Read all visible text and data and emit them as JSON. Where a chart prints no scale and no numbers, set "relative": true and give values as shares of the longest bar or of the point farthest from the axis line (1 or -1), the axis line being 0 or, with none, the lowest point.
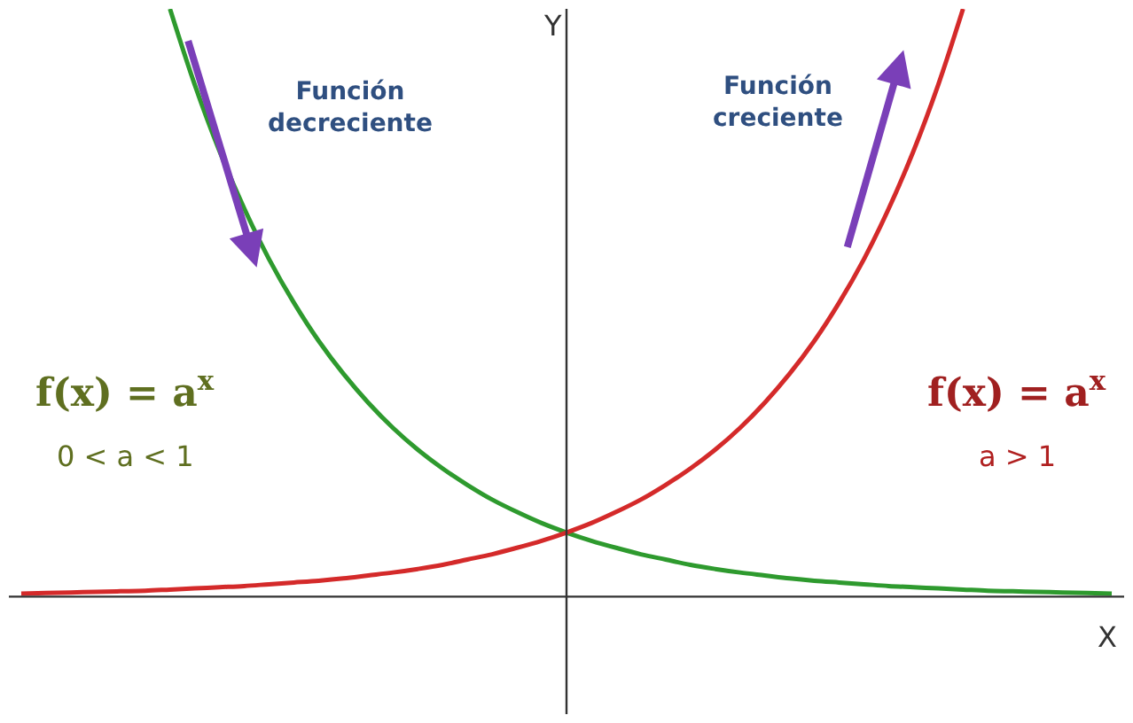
{
  "chart_data": {
    "type": "line",
    "relative": true,
    "xlabel": "X",
    "ylabel": "Y",
    "categories": [
      null,
      null,
      null,
      null,
      null,
      null,
      null,
      null,
      null,
      null,
      null,
      null,
      null,
      null,
      null,
      null,
      null,
      null,
      null,
      null,
      null,
      null,
      null,
      null,
      null,
      null,
      null,
      null,
      null,
      null,
      null,
      null,
      null,
      null,
      null,
      null,
      null,
      null,
      null,
      null,
      null,
      null,
      null,
      null,
      null
    ],
    "series": [
      {
        "color": "#2e9a2e",
        "values": [
          null,
          null,
          null,
          null,
          null,
          null,
          1.0,
          0.871,
          0.758,
          0.66,
          0.574,
          0.5,
          0.435,
          0.379,
          0.33,
          0.287,
          0.25,
          0.218,
          0.19,
          0.165,
          0.144,
          0.125,
          0.109,
          0.095,
          0.083,
          0.072,
          0.063,
          0.054,
          0.047,
          0.041,
          0.036,
          0.031,
          0.027,
          0.024,
          0.021,
          0.018,
          0.016,
          0.014,
          0.012,
          0.01,
          0.009,
          0.008,
          0.007,
          0.006,
          0.005
        ]
      },
      {
        "color": "#d42a2a",
        "values": [
          0.005,
          0.006,
          0.007,
          0.008,
          0.009,
          0.01,
          0.012,
          0.014,
          0.016,
          0.018,
          0.021,
          0.024,
          0.027,
          0.031,
          0.036,
          0.041,
          0.047,
          0.054,
          0.063,
          0.072,
          0.083,
          0.095,
          0.109,
          0.125,
          0.144,
          0.165,
          0.19,
          0.218,
          0.25,
          0.287,
          0.33,
          0.379,
          0.435,
          0.5,
          0.574,
          0.66,
          0.758,
          0.871,
          1.0,
          null,
          null,
          null,
          null,
          null,
          null
        ]
      }
    ],
    "annotations": [
      "Función decreciente",
      "Función creciente",
      "f(x) = a$^{x}$",
      "0 < a < 1",
      "f(x) = a$^{x}$",
      "a > 1"
    ],
    "marker": "none",
    "line_style": "solid",
    "legend": false
  }
}
